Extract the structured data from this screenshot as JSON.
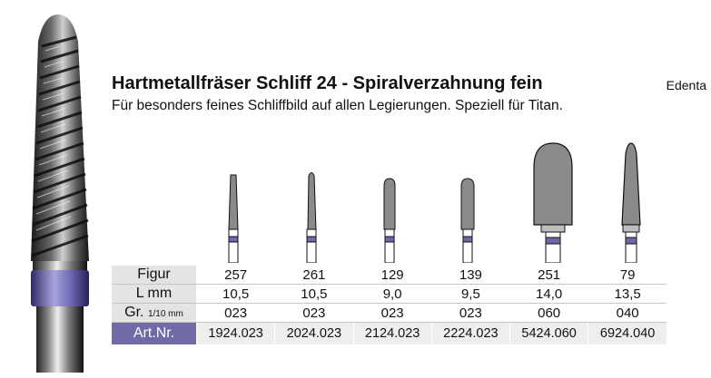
{
  "product": {
    "title": "Hartmetallfräser Schliff 24 - Spiralverzahnung fein",
    "brand": "Edenta",
    "subtitle": "Für besonders feines Schliffbild auf allen Legierungen. Speziell für Titan."
  },
  "accent_color": "#706aa6",
  "table": {
    "row_labels": {
      "figur": "Figur",
      "length": "L mm",
      "size_main": "Gr.",
      "size_unit": "1/10 mm",
      "art_nr": "Art.Nr."
    },
    "columns": [
      {
        "figur": "257",
        "length": "10,5",
        "size": "023",
        "art_nr": "1924.023"
      },
      {
        "figur": "261",
        "length": "10,5",
        "size": "023",
        "art_nr": "2024.023"
      },
      {
        "figur": "129",
        "length": "9,0",
        "size": "023",
        "art_nr": "2124.023"
      },
      {
        "figur": "139",
        "length": "9,5",
        "size": "023",
        "art_nr": "2224.023"
      },
      {
        "figur": "251",
        "length": "14,0",
        "size": "060",
        "art_nr": "5424.060"
      },
      {
        "figur": "79",
        "length": "13,5",
        "size": "040",
        "art_nr": "6924.040"
      }
    ]
  },
  "images": {
    "main": "carbide-bur-photo",
    "thumbnails": [
      "cone-bur-257",
      "tapered-bur-261",
      "cylinder-bur-129",
      "cylinder-bur-139",
      "egg-bur-251",
      "flame-bur-79"
    ]
  }
}
